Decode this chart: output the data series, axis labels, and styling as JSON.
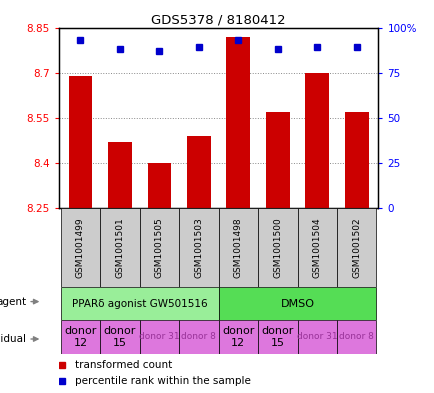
{
  "title": "GDS5378 / 8180412",
  "samples": [
    "GSM1001499",
    "GSM1001501",
    "GSM1001505",
    "GSM1001503",
    "GSM1001498",
    "GSM1001500",
    "GSM1001504",
    "GSM1001502"
  ],
  "bar_values": [
    8.69,
    8.47,
    8.4,
    8.49,
    8.82,
    8.57,
    8.7,
    8.57
  ],
  "percentile_values": [
    93,
    88,
    87,
    89,
    93,
    88,
    89,
    89
  ],
  "y_min": 8.25,
  "y_max": 8.85,
  "y_ticks": [
    8.25,
    8.4,
    8.55,
    8.7,
    8.85
  ],
  "right_y_ticks": [
    0,
    25,
    50,
    75,
    100
  ],
  "right_y_tick_labels": [
    "0",
    "25",
    "50",
    "75",
    "100%"
  ],
  "bar_color": "#cc0000",
  "percentile_color": "#0000cc",
  "agent_label_0": "PPARδ agonist GW501516",
  "agent_label_1": "DMSO",
  "agent_color_0": "#99ee99",
  "agent_color_1": "#55dd55",
  "individual_color": "#dd77dd",
  "individual_labels": [
    "donor\n12",
    "donor\n15",
    "donor 31",
    "donor 8",
    "donor\n12",
    "donor\n15",
    "donor 31",
    "donor 8"
  ],
  "individual_font_sizes": [
    8,
    8,
    6.5,
    6.5,
    8,
    8,
    6.5,
    6.5
  ],
  "individual_text_colors": [
    "black",
    "black",
    "#993399",
    "#993399",
    "black",
    "black",
    "#993399",
    "#993399"
  ],
  "legend_items": [
    "transformed count",
    "percentile rank within the sample"
  ],
  "sample_label_bg": "#cccccc",
  "grid_color": "#888888"
}
